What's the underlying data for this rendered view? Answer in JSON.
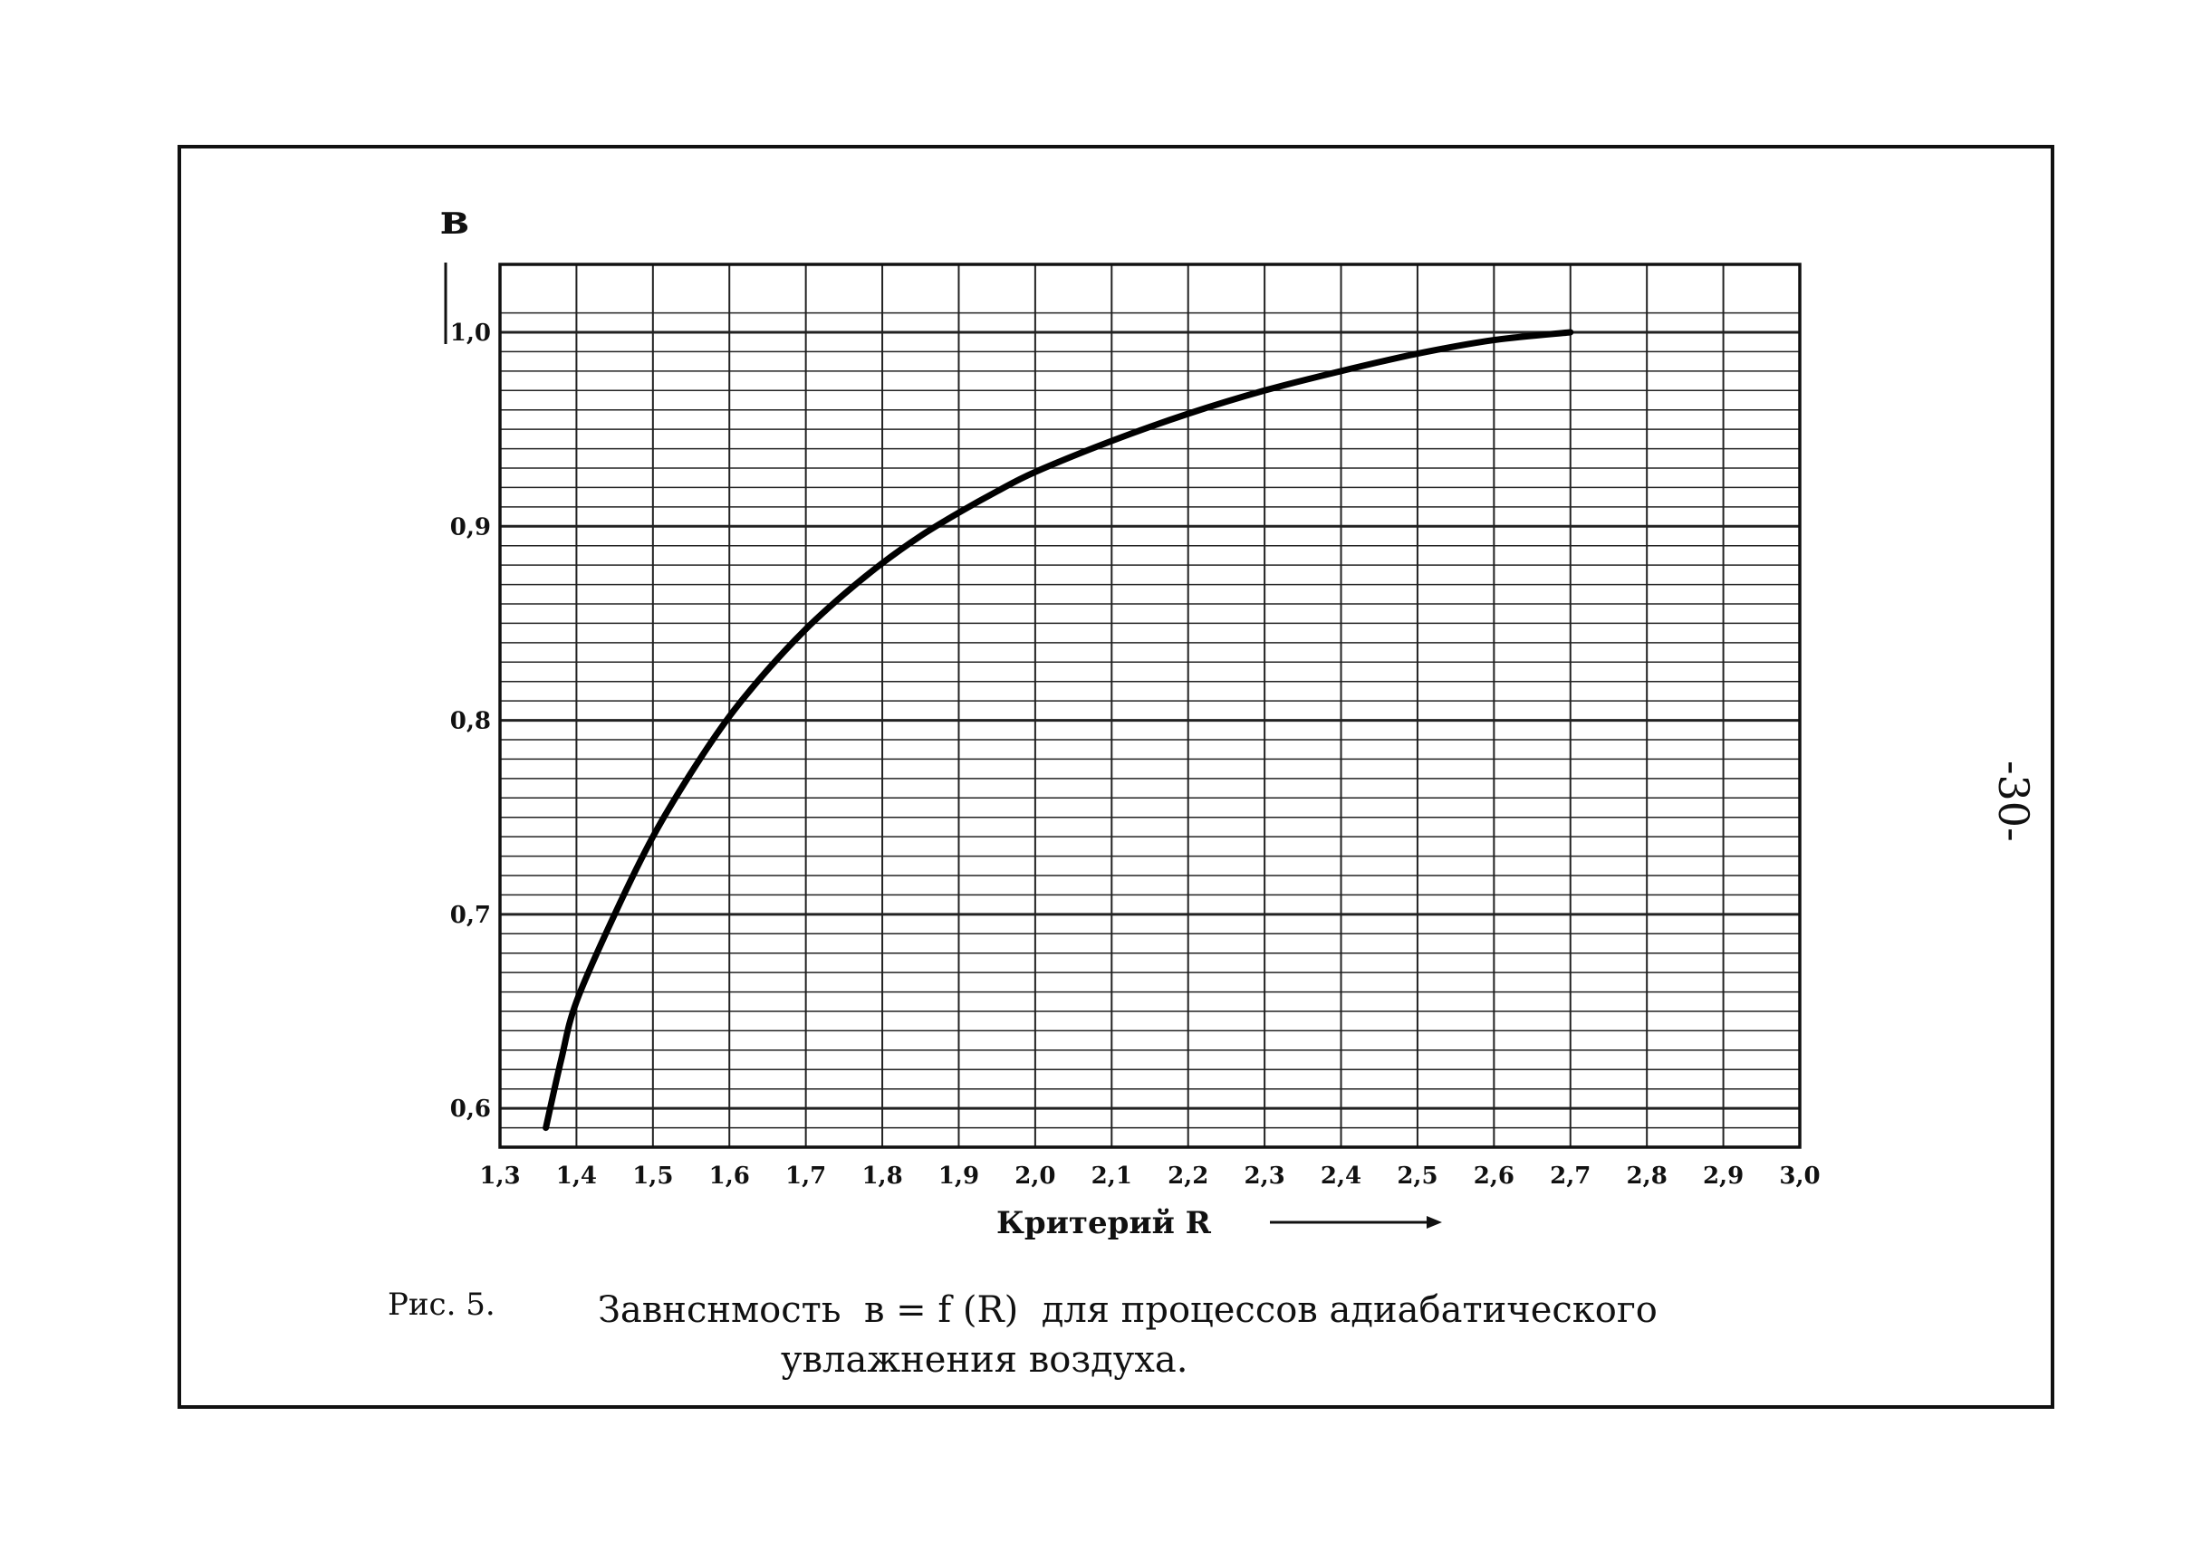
{
  "page": {
    "page_number": "-30-"
  },
  "chart_data": {
    "type": "line",
    "ylabel": "в",
    "xlabel": "Критерий R",
    "x_ticks": [
      "1,3",
      "1,4",
      "1,5",
      "1,6",
      "1,7",
      "1,8",
      "1,9",
      "2,0",
      "2,1",
      "2,2",
      "2,3",
      "2,4",
      "2,5",
      "2,6",
      "2,7",
      "2,8",
      "2,9",
      "3,0"
    ],
    "y_ticks": [
      "0,6",
      "0,7",
      "0,8",
      "0,9",
      "1,0"
    ],
    "xlim": [
      1.3,
      3.0
    ],
    "ylim": [
      0.58,
      1.035
    ],
    "grid": true,
    "series": [
      {
        "x": [
          1.36,
          1.38,
          1.4,
          1.45,
          1.5,
          1.55,
          1.6,
          1.65,
          1.7,
          1.75,
          1.8,
          1.85,
          1.9,
          1.95,
          2.0,
          2.1,
          2.2,
          2.3,
          2.4,
          2.5,
          2.6,
          2.7
        ],
        "y": [
          0.59,
          0.625,
          0.655,
          0.7,
          0.74,
          0.773,
          0.802,
          0.826,
          0.847,
          0.865,
          0.881,
          0.895,
          0.907,
          0.918,
          0.928,
          0.944,
          0.958,
          0.97,
          0.98,
          0.989,
          0.996,
          1.0
        ]
      }
    ]
  },
  "caption": {
    "fig_label": "Рис. 5.",
    "line1": "Завнснмость  в = f (R)  для процессов адиабатического",
    "line2": "увлажнения воздуха."
  }
}
